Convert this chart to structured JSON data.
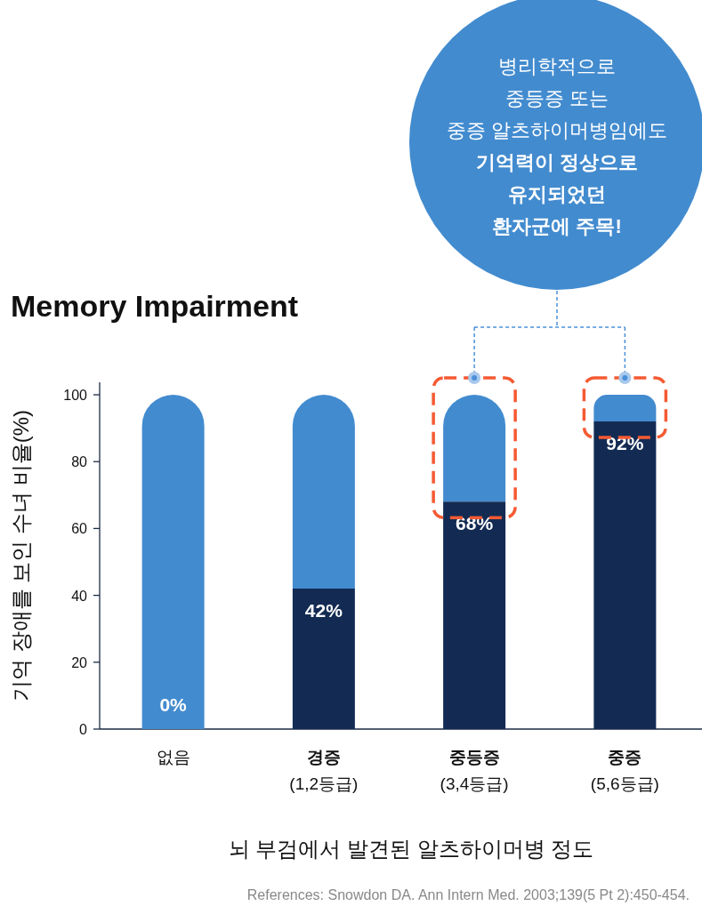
{
  "chart_data": {
    "type": "bar",
    "title": "Memory Impairment",
    "xlabel": "뇌 부검에서 발견된 알츠하이머병 정도",
    "ylabel": "기억 장애를 보인 수녀 비율(%)",
    "categories": [
      "없음",
      "**경증**\n(1,2등급)",
      "**중등증**\n(3,4등급)",
      "**중증**\n(5,6등급)"
    ],
    "stacked": true,
    "ylim": [
      0,
      100
    ],
    "yticks": [
      0,
      20,
      40,
      60,
      80,
      100
    ],
    "series": [
      {
        "color": "#132b53",
        "values": [
          0,
          42,
          68,
          92
        ],
        "value_labels": [
          null,
          "42%",
          "68%",
          "92%"
        ]
      },
      {
        "color": "#428bcf",
        "values": [
          100,
          58,
          32,
          8
        ]
      }
    ],
    "annotations": [
      "병리학적으로\n중등증 또는\n중증 알츠하이머병임에도\n**기억력이 정상으로**\n**유지되었던**\n**환자군에 주목!**",
      "References: Snowdon DA. Ann Intern Med. 2003;139(5 Pt 2):450-454.",
      {
        "text": "0%",
        "x": "없음",
        "y": 0
      }
    ]
  }
}
